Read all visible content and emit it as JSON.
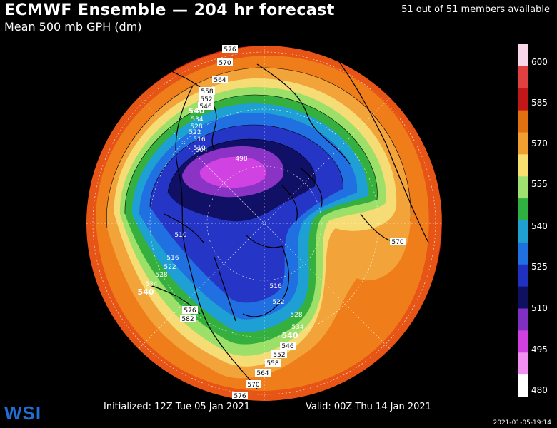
{
  "header": {
    "title": "ECMWF Ensemble — 204 hr forecast",
    "subtitle": "Mean 500 mb GPH (dm)",
    "members": "51 out of 51 members available"
  },
  "footer": {
    "initialized": "Initialized: 12Z Tue 05 Jan 2021",
    "valid": "Valid: 00Z Thu 14 Jan 2021",
    "stamp": "2021-01-05-19:14",
    "logo": "WSI"
  },
  "colorbar": {
    "labels": [
      "600",
      "585",
      "570",
      "555",
      "540",
      "525",
      "510",
      "495",
      "480"
    ],
    "colors": [
      "#f8d8e8",
      "#e04040",
      "#c01818",
      "#e07010",
      "#f0a030",
      "#f8e070",
      "#a0e070",
      "#30b040",
      "#20a0d0",
      "#2070e0",
      "#2030c0",
      "#101060",
      "#8030c0",
      "#d040e0",
      "#f090f0",
      "#ffffff"
    ]
  },
  "map": {
    "contour_labels": [
      "576",
      "570",
      "564",
      "558",
      "552",
      "546",
      "540",
      "534",
      "528",
      "522",
      "516",
      "510",
      "504",
      "498",
      "510",
      "516",
      "522",
      "528",
      "534",
      "540",
      "576",
      "582",
      "516",
      "522",
      "528",
      "534",
      "540",
      "546",
      "552",
      "558",
      "564",
      "570",
      "576",
      "570"
    ]
  }
}
